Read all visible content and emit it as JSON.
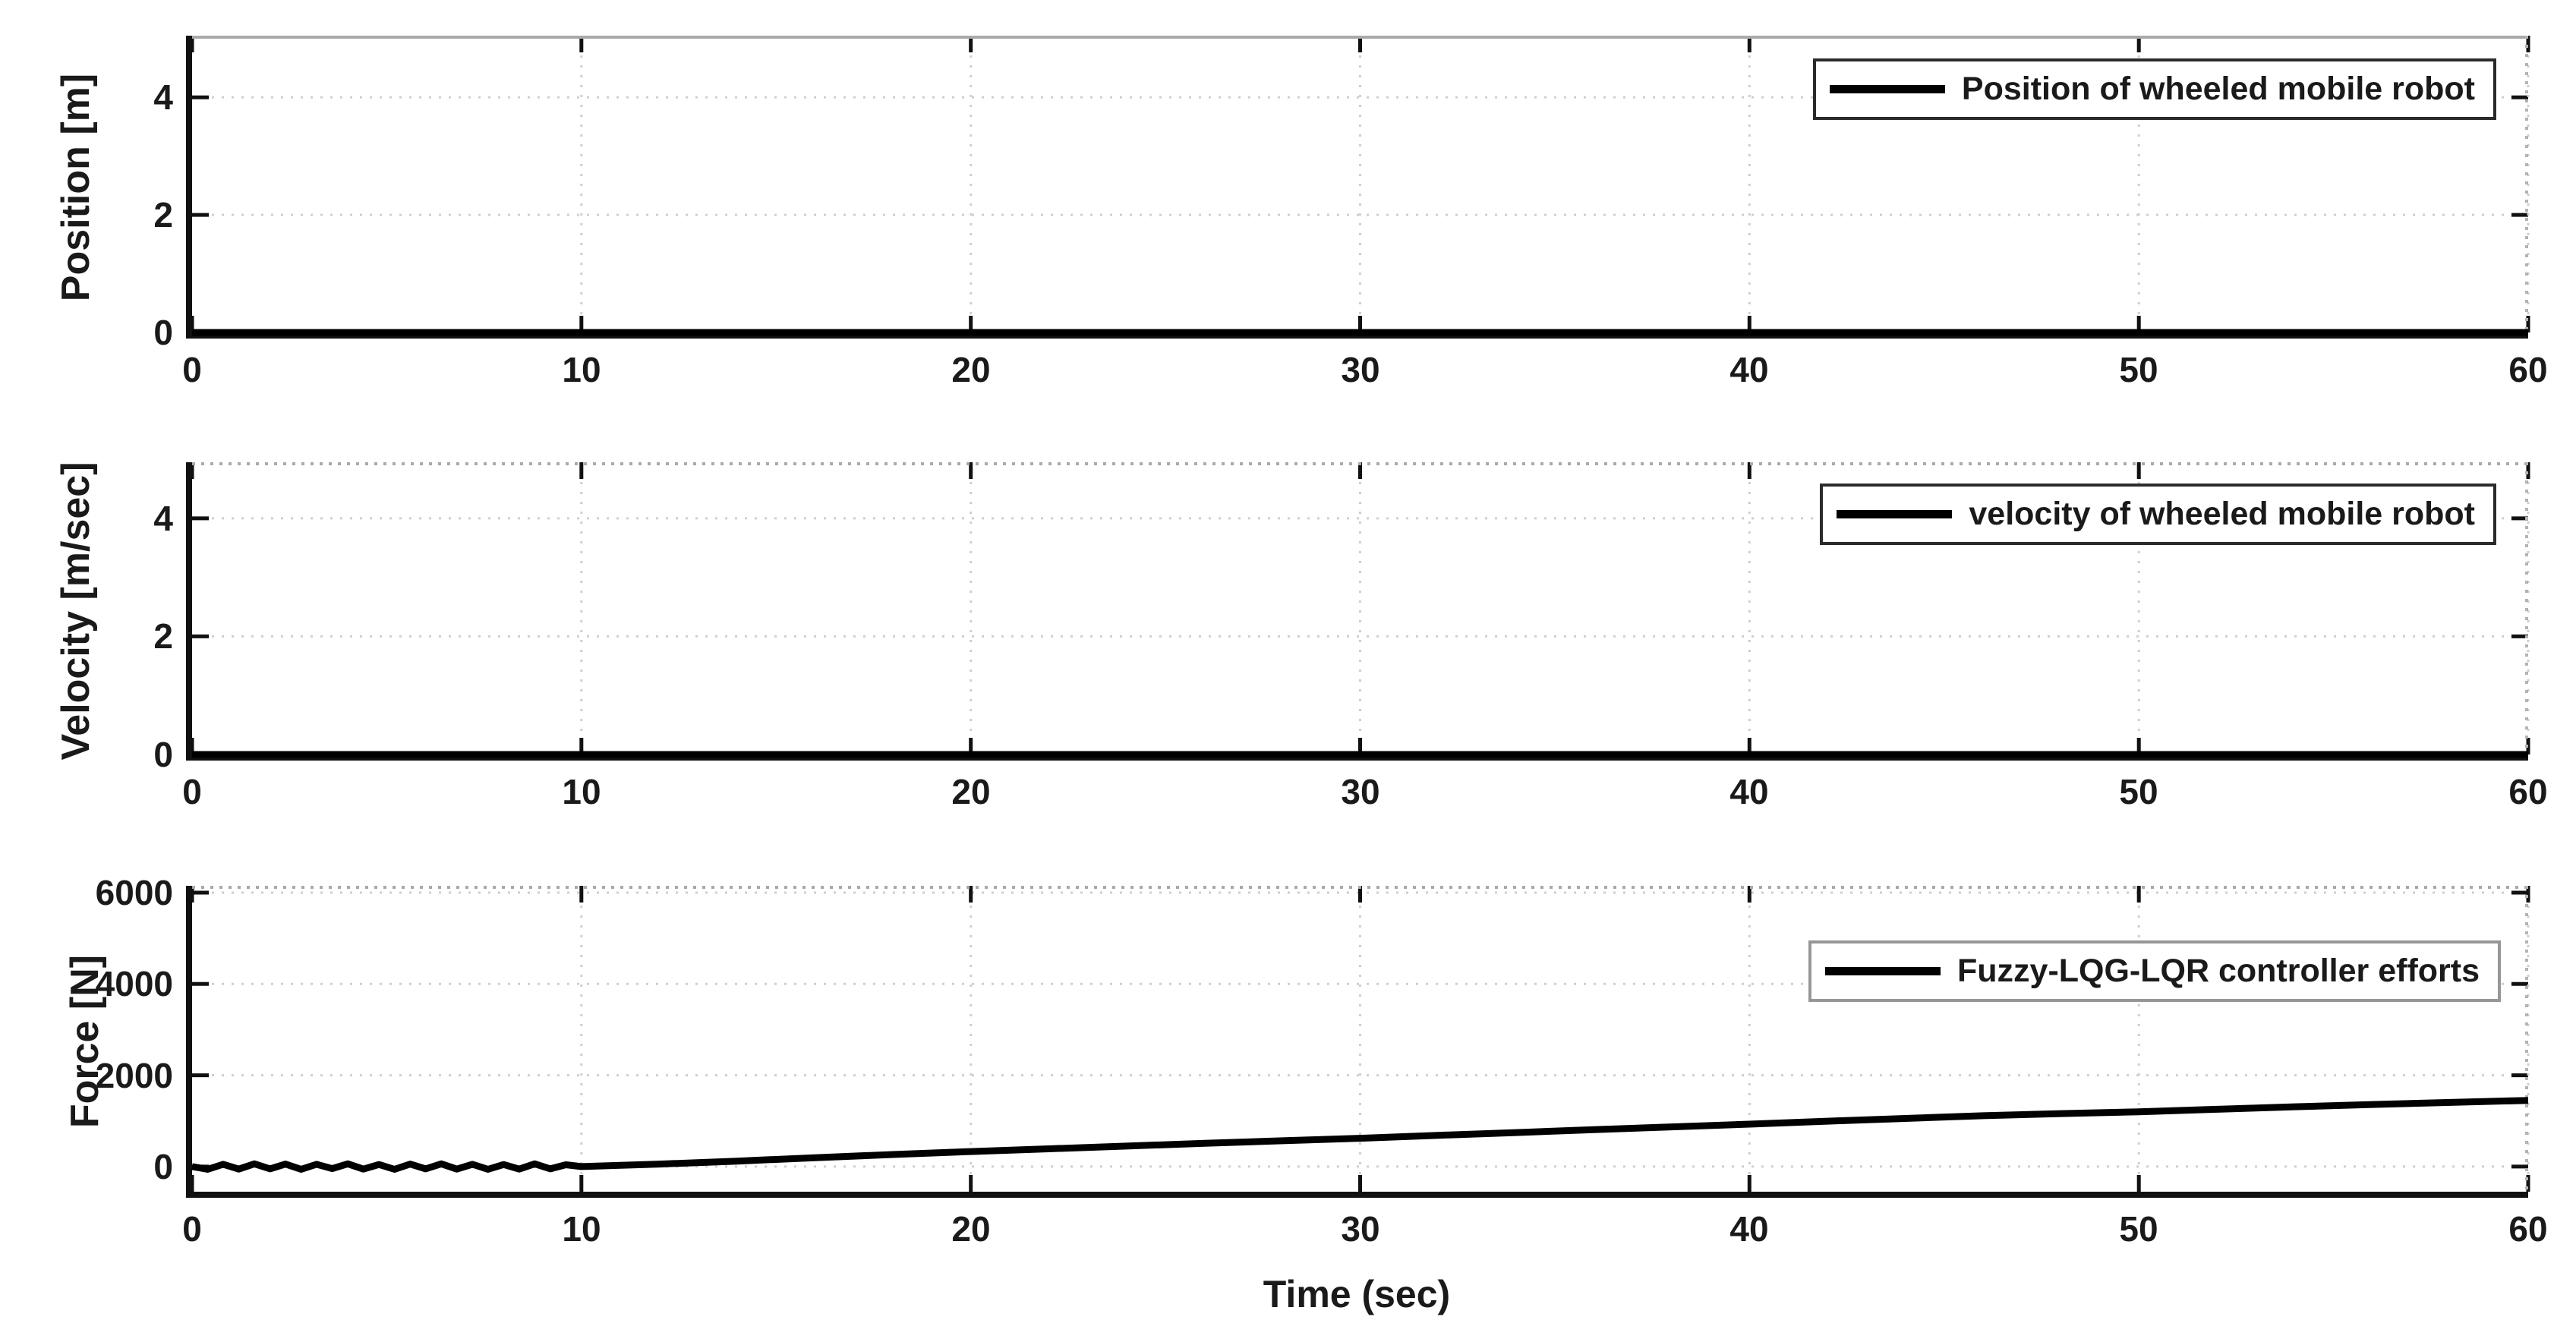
{
  "figure": {
    "xlabel": "Time (sec)",
    "background": "#ffffff"
  },
  "colors": {
    "line": "#000000",
    "spine": "#111111",
    "grid": "#cfcfcf",
    "top_edge": "#a9a9a9",
    "tick": "#111111",
    "text": "#1a1a1a",
    "legend_border_dark": "#2b2b2b",
    "legend_border_gray": "#969696"
  },
  "chart_data": [
    {
      "type": "line",
      "title": "",
      "xlabel": "",
      "ylabel": "Position [m]",
      "legend": "Position of wheeled mobile robot",
      "legend_position": "top-right",
      "grid": true,
      "xlim": [
        0,
        60
      ],
      "ylim": [
        0,
        5.05
      ],
      "xticks": [
        0,
        10,
        20,
        30,
        40,
        50,
        60
      ],
      "yticks": [
        0,
        2,
        4
      ],
      "series": [
        {
          "name": "Position of wheeled mobile robot",
          "x": [
            0,
            60
          ],
          "y": [
            0,
            0
          ]
        }
      ]
    },
    {
      "type": "line",
      "title": "",
      "xlabel": "",
      "ylabel": "Velocity [m/sec]",
      "legend": "velocity of wheeled mobile robot",
      "legend_position": "top-right",
      "grid": true,
      "xlim": [
        0,
        60
      ],
      "ylim": [
        0,
        4.95
      ],
      "xticks": [
        0,
        10,
        20,
        30,
        40,
        50,
        60
      ],
      "yticks": [
        0,
        2,
        4
      ],
      "series": [
        {
          "name": "velocity of wheeled mobile robot",
          "x": [
            0,
            60
          ],
          "y": [
            0,
            0
          ]
        }
      ]
    },
    {
      "type": "line",
      "title": "",
      "xlabel": "Time (sec)",
      "ylabel": "Force [N]",
      "legend": "Fuzzy-LQG-LQR controller efforts",
      "legend_position": "top-right",
      "grid": true,
      "xlim": [
        0,
        60
      ],
      "ylim": [
        -550,
        6150
      ],
      "xticks": [
        0,
        10,
        20,
        30,
        40,
        50,
        60
      ],
      "yticks": [
        0,
        2000,
        4000,
        6000
      ],
      "ytick_labels": [
        "0",
        "2000",
        "4000",
        "6000"
      ],
      "series": [
        {
          "name": "Fuzzy-LQG-LQR controller efforts",
          "x": [
            0,
            0.4,
            0.8,
            1.2,
            1.6,
            2,
            2.4,
            2.8,
            3.2,
            3.6,
            4,
            4.4,
            4.8,
            5.2,
            5.6,
            6,
            6.4,
            6.8,
            7.2,
            7.6,
            8,
            8.4,
            8.8,
            9.2,
            9.6,
            10,
            12,
            14,
            16,
            18,
            20,
            22,
            24,
            26,
            28,
            30,
            32,
            34,
            36,
            38,
            40,
            42,
            44,
            46,
            48,
            50,
            52,
            54,
            56,
            58,
            60
          ],
          "y": [
            0,
            -60,
            50,
            -55,
            60,
            -50,
            55,
            -60,
            50,
            -45,
            60,
            -55,
            45,
            -60,
            55,
            -50,
            60,
            -55,
            50,
            -60,
            45,
            -55,
            60,
            -50,
            40,
            0,
            55,
            120,
            195,
            265,
            330,
            390,
            450,
            510,
            565,
            620,
            685,
            745,
            810,
            870,
            930,
            995,
            1055,
            1115,
            1160,
            1200,
            1255,
            1310,
            1360,
            1405,
            1450
          ]
        }
      ]
    }
  ]
}
